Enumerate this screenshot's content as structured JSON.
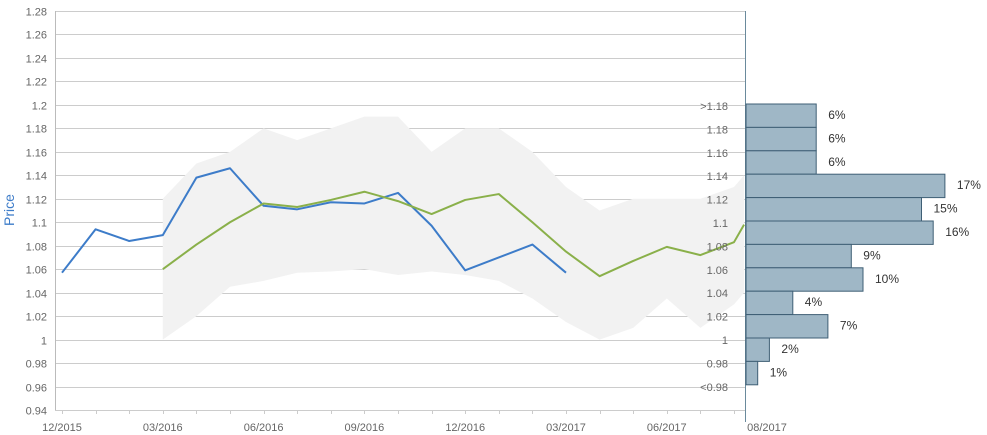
{
  "chart_data": {
    "type": "line",
    "ylabel": "Price",
    "ylim": [
      0.94,
      1.28
    ],
    "yticks": [
      "0.94",
      "0.96",
      "0.98",
      "1",
      "1.02",
      "1.04",
      "1.06",
      "1.08",
      "1.1",
      "1.12",
      "1.14",
      "1.16",
      "1.18",
      "1.2",
      "1.22",
      "1.24",
      "1.26",
      "1.28"
    ],
    "x_tick_labels": [
      "12/2015",
      "03/2016",
      "06/2016",
      "09/2016",
      "12/2016",
      "03/2017",
      "06/2017",
      "08/2017"
    ],
    "colors": {
      "historical": "#3d7cc9",
      "forecast": "#8ab04a",
      "band": "#f2f2f2",
      "bar_fill": "#9fb7c6",
      "bar_stroke": "#3f5f75",
      "grid": "#cccccc",
      "axis_title": "#3d7cc9"
    },
    "series": [
      {
        "key": "historical",
        "x": [
          0,
          1,
          2,
          3,
          4,
          5,
          6,
          7,
          8,
          9,
          10,
          11,
          12,
          13,
          14,
          15
        ],
        "values": [
          1.057,
          1.094,
          1.084,
          1.089,
          1.138,
          1.146,
          1.114,
          1.111,
          1.117,
          1.116,
          1.125,
          1.097,
          1.059,
          1.07,
          1.081,
          1.057
        ]
      },
      {
        "key": "forecast",
        "x": [
          3,
          4,
          5,
          6,
          7,
          8,
          9,
          10,
          11,
          12,
          13,
          14,
          15,
          16,
          17,
          18,
          19,
          20,
          20.3
        ],
        "values": [
          1.06,
          1.081,
          1.1,
          1.116,
          1.113,
          1.119,
          1.126,
          1.118,
          1.107,
          1.119,
          1.124,
          1.1,
          1.075,
          1.054,
          1.067,
          1.079,
          1.072,
          1.083,
          1.098
        ]
      }
    ],
    "band": {
      "upper": [
        [
          3,
          1.12
        ],
        [
          4,
          1.15
        ],
        [
          5,
          1.16
        ],
        [
          6,
          1.18
        ],
        [
          7,
          1.17
        ],
        [
          8,
          1.18
        ],
        [
          9,
          1.19
        ],
        [
          10,
          1.19
        ],
        [
          11,
          1.16
        ],
        [
          12,
          1.18
        ],
        [
          13,
          1.18
        ],
        [
          14,
          1.16
        ],
        [
          15,
          1.13
        ],
        [
          16,
          1.11
        ],
        [
          17,
          1.12
        ],
        [
          18,
          1.12
        ],
        [
          19,
          1.12
        ],
        [
          20,
          1.13
        ],
        [
          20.3,
          1.14
        ]
      ],
      "lower": [
        [
          3,
          1.0
        ],
        [
          4,
          1.02
        ],
        [
          5,
          1.045
        ],
        [
          6,
          1.05
        ],
        [
          7,
          1.057
        ],
        [
          8,
          1.058
        ],
        [
          9,
          1.06
        ],
        [
          10,
          1.055
        ],
        [
          11,
          1.058
        ],
        [
          12,
          1.055
        ],
        [
          13,
          1.05
        ],
        [
          14,
          1.035
        ],
        [
          15,
          1.015
        ],
        [
          16,
          1.0
        ],
        [
          17,
          1.01
        ],
        [
          18,
          1.035
        ],
        [
          19,
          1.01
        ],
        [
          20,
          1.03
        ],
        [
          20.3,
          1.04
        ]
      ]
    },
    "histogram": {
      "bins": [
        {
          "label": ">1.18",
          "percent": 6,
          "display": "6%"
        },
        {
          "label": "1.18",
          "percent": 6,
          "display": "6%"
        },
        {
          "label": "1.16",
          "percent": 6,
          "display": "6%"
        },
        {
          "label": "1.14",
          "percent": 17,
          "display": "17%"
        },
        {
          "label": "1.12",
          "percent": 15,
          "display": "15%"
        },
        {
          "label": "1.1",
          "percent": 16,
          "display": "16%"
        },
        {
          "label": "1.08",
          "percent": 9,
          "display": "9%"
        },
        {
          "label": "1.06",
          "percent": 10,
          "display": "10%"
        },
        {
          "label": "1.04",
          "percent": 4,
          "display": "4%"
        },
        {
          "label": "1.02",
          "percent": 7,
          "display": "7%"
        },
        {
          "label": "1",
          "percent": 2,
          "display": "2%"
        },
        {
          "label": "0.98",
          "percent": 1,
          "display": "1%"
        },
        {
          "label": "<0.98",
          "percent": null,
          "display": ""
        }
      ]
    }
  }
}
